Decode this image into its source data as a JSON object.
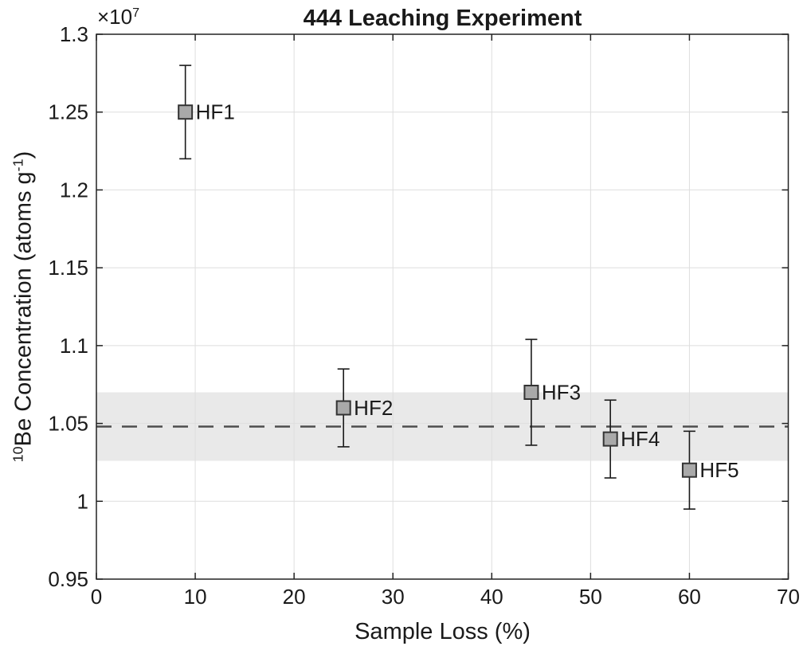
{
  "chart_data": {
    "type": "scatter",
    "title": "444 Leaching Experiment",
    "xlabel": "Sample Loss (%)",
    "ylabel": "10Be Concentration (atoms g-1)",
    "ylabel_parts": {
      "sup1": "10",
      "main": "Be Concentration (atoms g",
      "sup2": "-1",
      "close": ")"
    },
    "y_multiplier": "x10^7",
    "y_multiplier_base": "×10",
    "y_multiplier_exp": "7",
    "xlim": [
      0,
      70
    ],
    "ylim": [
      0.95,
      1.3
    ],
    "y_unit_scale": "1e7",
    "grid": true,
    "legend_position": "none",
    "x_ticks": [
      0,
      10,
      20,
      30,
      40,
      50,
      60,
      70
    ],
    "x_tick_labels": [
      "0",
      "10",
      "20",
      "30",
      "40",
      "50",
      "60",
      "70"
    ],
    "y_ticks": [
      0.95,
      1.0,
      1.05,
      1.1,
      1.15,
      1.2,
      1.25,
      1.3
    ],
    "y_tick_labels": [
      "0.95",
      "1",
      "1.05",
      "1.1",
      "1.15",
      "1.2",
      "1.25",
      "1.3"
    ],
    "points": [
      {
        "label": "HF1",
        "x": 9,
        "y": 1.25,
        "err_plus": 0.03,
        "err_minus": 0.03
      },
      {
        "label": "HF2",
        "x": 25,
        "y": 1.06,
        "err_plus": 0.025,
        "err_minus": 0.025
      },
      {
        "label": "HF3",
        "x": 44,
        "y": 1.07,
        "err_plus": 0.034,
        "err_minus": 0.034
      },
      {
        "label": "HF4",
        "x": 52,
        "y": 1.04,
        "err_plus": 0.025,
        "err_minus": 0.025
      },
      {
        "label": "HF5",
        "x": 60,
        "y": 1.02,
        "err_plus": 0.025,
        "err_minus": 0.025
      }
    ],
    "mean_line": {
      "y": 1.048,
      "style": "dashed"
    },
    "band": {
      "y_low": 1.026,
      "y_high": 1.07
    },
    "colors": {
      "band": "#e9e9e9",
      "grid": "#dedede",
      "dashed_line": "#4d4d4d",
      "error_bar": "#1a1a1a",
      "marker_fill": "#a9a9a9",
      "marker_edge": "#333333",
      "axis": "#222222",
      "text": "#1a1a1a",
      "background": "#ffffff"
    }
  }
}
